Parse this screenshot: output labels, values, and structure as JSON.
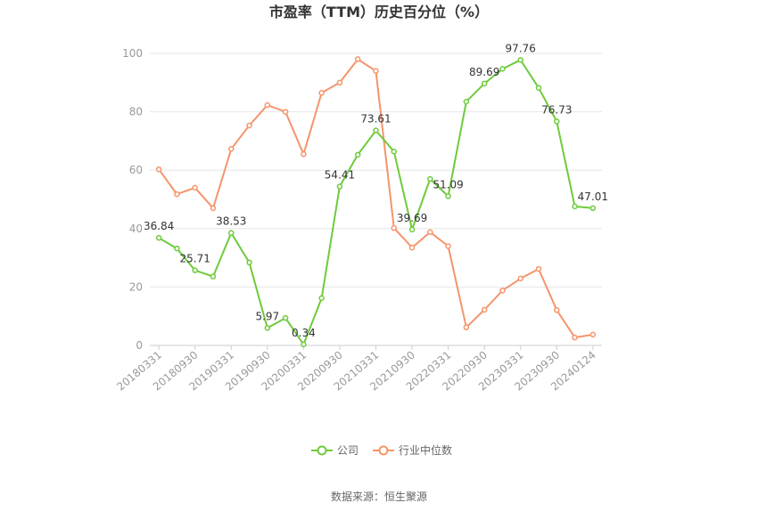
{
  "chart_data": {
    "type": "line",
    "title": "市盈率（TTM）历史百分位（%）",
    "ylim": [
      0,
      100
    ],
    "yticks": [
      0,
      20,
      40,
      60,
      80,
      100
    ],
    "x": [
      "20180331",
      "20180630",
      "20180930",
      "20181231",
      "20190331",
      "20190630",
      "20190930",
      "20191231",
      "20200331",
      "20200630",
      "20200930",
      "20201231",
      "20210331",
      "20210630",
      "20210930",
      "20211231",
      "20220331",
      "20220630",
      "20220930",
      "20221231",
      "20230331",
      "20230630",
      "20230930",
      "20231231",
      "20240124"
    ],
    "xtick_labels": [
      "20180331",
      "20180930",
      "20190331",
      "20190930",
      "20200331",
      "20200930",
      "20210331",
      "20210930",
      "20220331",
      "20220930",
      "20230331",
      "20230930",
      "20240124"
    ],
    "series": [
      {
        "name": "公司",
        "color": "#6ecb3c",
        "values": [
          36.84,
          33.2,
          25.71,
          23.6,
          38.53,
          28.4,
          5.97,
          9.4,
          0.34,
          16.2,
          54.41,
          65.3,
          73.61,
          66.4,
          39.69,
          57.0,
          51.09,
          83.5,
          89.69,
          94.7,
          97.76,
          88.2,
          76.73,
          47.6,
          47.01
        ],
        "labels": {
          "0": "36.84",
          "2": "25.71",
          "4": "38.53",
          "6": "5.97",
          "8": "0.34",
          "10": "54.41",
          "12": "73.61",
          "14": "39.69",
          "16": "51.09",
          "18": "89.69",
          "20": "97.76",
          "22": "76.73",
          "24": "47.01"
        }
      },
      {
        "name": "行业中位数",
        "color": "#f5946b",
        "values": [
          60.3,
          51.8,
          54.0,
          47.0,
          67.3,
          75.3,
          82.3,
          80.0,
          65.5,
          86.5,
          90.0,
          98.0,
          94.0,
          40.2,
          33.5,
          38.8,
          34.0,
          6.2,
          12.2,
          18.8,
          22.9,
          26.2,
          12.1,
          2.7,
          3.7
        ]
      }
    ],
    "legend_position": "bottom-center",
    "source": "数据来源：恒生聚源"
  }
}
